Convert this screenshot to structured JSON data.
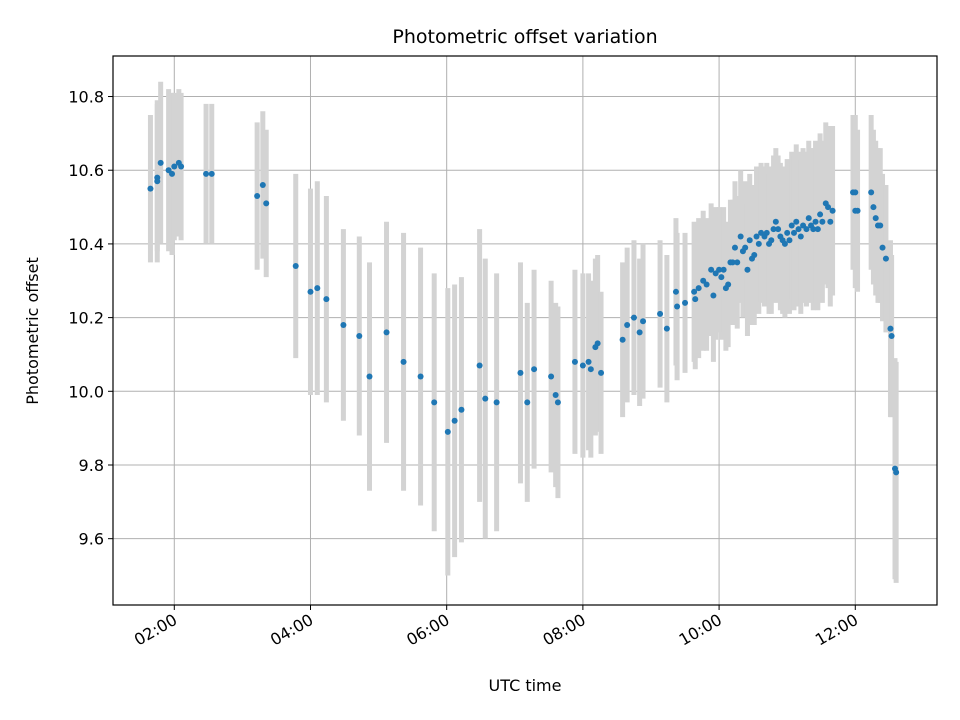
{
  "chart_data": {
    "type": "scatter",
    "title": "Photometric offset variation",
    "xlabel": "UTC time",
    "ylabel": "Photometric offset",
    "x_ticks": [
      "02:00",
      "04:00",
      "06:00",
      "08:00",
      "10:00",
      "12:00"
    ],
    "y_ticks": [
      "9.6",
      "9.8",
      "10.0",
      "10.2",
      "10.4",
      "10.6",
      "10.8"
    ],
    "xlim": [
      "01:06",
      "13:12"
    ],
    "ylim": [
      9.42,
      10.91
    ],
    "grid": true,
    "point_color": "#1f77b4",
    "errorbar_color": "#d3d3d3",
    "points": [
      {
        "x": "01:39",
        "y": 10.55,
        "err": 0.2
      },
      {
        "x": "01:45",
        "y": 10.58,
        "err": 0.2
      },
      {
        "x": "01:45",
        "y": 10.57,
        "err": 0.22
      },
      {
        "x": "01:48",
        "y": 10.62,
        "err": 0.22
      },
      {
        "x": "01:55",
        "y": 10.6,
        "err": 0.22
      },
      {
        "x": "01:58",
        "y": 10.59,
        "err": 0.22
      },
      {
        "x": "02:00",
        "y": 10.61,
        "err": 0.2
      },
      {
        "x": "02:04",
        "y": 10.62,
        "err": 0.2
      },
      {
        "x": "02:06",
        "y": 10.61,
        "err": 0.2
      },
      {
        "x": "02:28",
        "y": 10.59,
        "err": 0.19
      },
      {
        "x": "02:33",
        "y": 10.59,
        "err": 0.19
      },
      {
        "x": "03:13",
        "y": 10.53,
        "err": 0.2
      },
      {
        "x": "03:18",
        "y": 10.56,
        "err": 0.2
      },
      {
        "x": "03:21",
        "y": 10.51,
        "err": 0.2
      },
      {
        "x": "03:47",
        "y": 10.34,
        "err": 0.25
      },
      {
        "x": "04:00",
        "y": 10.27,
        "err": 0.28
      },
      {
        "x": "04:06",
        "y": 10.28,
        "err": 0.29
      },
      {
        "x": "04:14",
        "y": 10.25,
        "err": 0.28
      },
      {
        "x": "04:29",
        "y": 10.18,
        "err": 0.26
      },
      {
        "x": "04:43",
        "y": 10.15,
        "err": 0.27
      },
      {
        "x": "04:52",
        "y": 10.04,
        "err": 0.31
      },
      {
        "x": "05:07",
        "y": 10.16,
        "err": 0.3
      },
      {
        "x": "05:22",
        "y": 10.08,
        "err": 0.35
      },
      {
        "x": "05:37",
        "y": 10.04,
        "err": 0.35
      },
      {
        "x": "05:49",
        "y": 9.97,
        "err": 0.35
      },
      {
        "x": "06:01",
        "y": 9.89,
        "err": 0.39
      },
      {
        "x": "06:07",
        "y": 9.92,
        "err": 0.37
      },
      {
        "x": "06:13",
        "y": 9.95,
        "err": 0.36
      },
      {
        "x": "06:29",
        "y": 10.07,
        "err": 0.37
      },
      {
        "x": "06:34",
        "y": 9.98,
        "err": 0.38
      },
      {
        "x": "06:44",
        "y": 9.97,
        "err": 0.35
      },
      {
        "x": "07:05",
        "y": 10.05,
        "err": 0.3
      },
      {
        "x": "07:11",
        "y": 9.97,
        "err": 0.27
      },
      {
        "x": "07:17",
        "y": 10.06,
        "err": 0.27
      },
      {
        "x": "07:32",
        "y": 10.04,
        "err": 0.26
      },
      {
        "x": "07:36",
        "y": 9.99,
        "err": 0.25
      },
      {
        "x": "07:38",
        "y": 9.97,
        "err": 0.26
      },
      {
        "x": "07:53",
        "y": 10.08,
        "err": 0.25
      },
      {
        "x": "08:00",
        "y": 10.07,
        "err": 0.25
      },
      {
        "x": "08:05",
        "y": 10.08,
        "err": 0.24
      },
      {
        "x": "08:07",
        "y": 10.06,
        "err": 0.24
      },
      {
        "x": "08:11",
        "y": 10.12,
        "err": 0.24
      },
      {
        "x": "08:13",
        "y": 10.13,
        "err": 0.24
      },
      {
        "x": "08:16",
        "y": 10.05,
        "err": 0.22
      },
      {
        "x": "08:35",
        "y": 10.14,
        "err": 0.21
      },
      {
        "x": "08:39",
        "y": 10.18,
        "err": 0.21
      },
      {
        "x": "08:45",
        "y": 10.2,
        "err": 0.21
      },
      {
        "x": "08:50",
        "y": 10.16,
        "err": 0.2
      },
      {
        "x": "08:53",
        "y": 10.19,
        "err": 0.21
      },
      {
        "x": "09:08",
        "y": 10.21,
        "err": 0.2
      },
      {
        "x": "09:14",
        "y": 10.17,
        "err": 0.2
      },
      {
        "x": "09:22",
        "y": 10.27,
        "err": 0.2
      },
      {
        "x": "09:23",
        "y": 10.23,
        "err": 0.2
      },
      {
        "x": "09:30",
        "y": 10.24,
        "err": 0.19
      },
      {
        "x": "09:38",
        "y": 10.27,
        "err": 0.19
      },
      {
        "x": "09:39",
        "y": 10.25,
        "err": 0.19
      },
      {
        "x": "09:42",
        "y": 10.28,
        "err": 0.19
      },
      {
        "x": "09:46",
        "y": 10.3,
        "err": 0.19
      },
      {
        "x": "09:49",
        "y": 10.29,
        "err": 0.18
      },
      {
        "x": "09:53",
        "y": 10.33,
        "err": 0.18
      },
      {
        "x": "09:55",
        "y": 10.26,
        "err": 0.18
      },
      {
        "x": "09:57",
        "y": 10.32,
        "err": 0.18
      },
      {
        "x": "10:00",
        "y": 10.33,
        "err": 0.17
      },
      {
        "x": "10:02",
        "y": 10.31,
        "err": 0.17
      },
      {
        "x": "10:04",
        "y": 10.33,
        "err": 0.17
      },
      {
        "x": "10:06",
        "y": 10.28,
        "err": 0.17
      },
      {
        "x": "10:08",
        "y": 10.29,
        "err": 0.17
      },
      {
        "x": "10:10",
        "y": 10.35,
        "err": 0.17
      },
      {
        "x": "10:12",
        "y": 10.35,
        "err": 0.17
      },
      {
        "x": "10:14",
        "y": 10.39,
        "err": 0.18
      },
      {
        "x": "10:16",
        "y": 10.35,
        "err": 0.18
      },
      {
        "x": "10:19",
        "y": 10.42,
        "err": 0.18
      },
      {
        "x": "10:21",
        "y": 10.38,
        "err": 0.18
      },
      {
        "x": "10:23",
        "y": 10.39,
        "err": 0.18
      },
      {
        "x": "10:25",
        "y": 10.33,
        "err": 0.18
      },
      {
        "x": "10:27",
        "y": 10.41,
        "err": 0.18
      },
      {
        "x": "10:29",
        "y": 10.36,
        "err": 0.18
      },
      {
        "x": "10:31",
        "y": 10.37,
        "err": 0.19
      },
      {
        "x": "10:33",
        "y": 10.42,
        "err": 0.19
      },
      {
        "x": "10:35",
        "y": 10.4,
        "err": 0.19
      },
      {
        "x": "10:37",
        "y": 10.43,
        "err": 0.19
      },
      {
        "x": "10:40",
        "y": 10.42,
        "err": 0.19
      },
      {
        "x": "10:42",
        "y": 10.43,
        "err": 0.19
      },
      {
        "x": "10:44",
        "y": 10.4,
        "err": 0.19
      },
      {
        "x": "10:46",
        "y": 10.41,
        "err": 0.2
      },
      {
        "x": "10:48",
        "y": 10.44,
        "err": 0.2
      },
      {
        "x": "10:50",
        "y": 10.46,
        "err": 0.2
      },
      {
        "x": "10:52",
        "y": 10.44,
        "err": 0.2
      },
      {
        "x": "10:54",
        "y": 10.42,
        "err": 0.2
      },
      {
        "x": "10:56",
        "y": 10.41,
        "err": 0.2
      },
      {
        "x": "10:58",
        "y": 10.4,
        "err": 0.2
      },
      {
        "x": "11:00",
        "y": 10.43,
        "err": 0.2
      },
      {
        "x": "11:02",
        "y": 10.41,
        "err": 0.2
      },
      {
        "x": "11:04",
        "y": 10.45,
        "err": 0.2
      },
      {
        "x": "11:06",
        "y": 10.43,
        "err": 0.21
      },
      {
        "x": "11:08",
        "y": 10.46,
        "err": 0.21
      },
      {
        "x": "11:10",
        "y": 10.44,
        "err": 0.21
      },
      {
        "x": "11:12",
        "y": 10.42,
        "err": 0.21
      },
      {
        "x": "11:14",
        "y": 10.45,
        "err": 0.21
      },
      {
        "x": "11:17",
        "y": 10.44,
        "err": 0.21
      },
      {
        "x": "11:19",
        "y": 10.47,
        "err": 0.21
      },
      {
        "x": "11:21",
        "y": 10.45,
        "err": 0.21
      },
      {
        "x": "11:23",
        "y": 10.44,
        "err": 0.22
      },
      {
        "x": "11:25",
        "y": 10.46,
        "err": 0.22
      },
      {
        "x": "11:27",
        "y": 10.44,
        "err": 0.22
      },
      {
        "x": "11:29",
        "y": 10.48,
        "err": 0.22
      },
      {
        "x": "11:31",
        "y": 10.46,
        "err": 0.22
      },
      {
        "x": "11:34",
        "y": 10.51,
        "err": 0.22
      },
      {
        "x": "11:36",
        "y": 10.5,
        "err": 0.22
      },
      {
        "x": "11:38",
        "y": 10.46,
        "err": 0.23
      },
      {
        "x": "11:40",
        "y": 10.49,
        "err": 0.23
      },
      {
        "x": "11:58",
        "y": 10.54,
        "err": 0.21
      },
      {
        "x": "12:00",
        "y": 10.54,
        "err": 0.21
      },
      {
        "x": "12:00",
        "y": 10.49,
        "err": 0.21
      },
      {
        "x": "12:02",
        "y": 10.49,
        "err": 0.22
      },
      {
        "x": "12:14",
        "y": 10.54,
        "err": 0.21
      },
      {
        "x": "12:16",
        "y": 10.5,
        "err": 0.21
      },
      {
        "x": "12:18",
        "y": 10.47,
        "err": 0.21
      },
      {
        "x": "12:20",
        "y": 10.45,
        "err": 0.21
      },
      {
        "x": "12:22",
        "y": 10.45,
        "err": 0.21
      },
      {
        "x": "12:24",
        "y": 10.39,
        "err": 0.2
      },
      {
        "x": "12:27",
        "y": 10.36,
        "err": 0.2
      },
      {
        "x": "12:31",
        "y": 10.17,
        "err": 0.24
      },
      {
        "x": "12:32",
        "y": 10.15,
        "err": 0.22
      },
      {
        "x": "12:35",
        "y": 9.79,
        "err": 0.3
      },
      {
        "x": "12:36",
        "y": 9.78,
        "err": 0.3
      }
    ]
  }
}
